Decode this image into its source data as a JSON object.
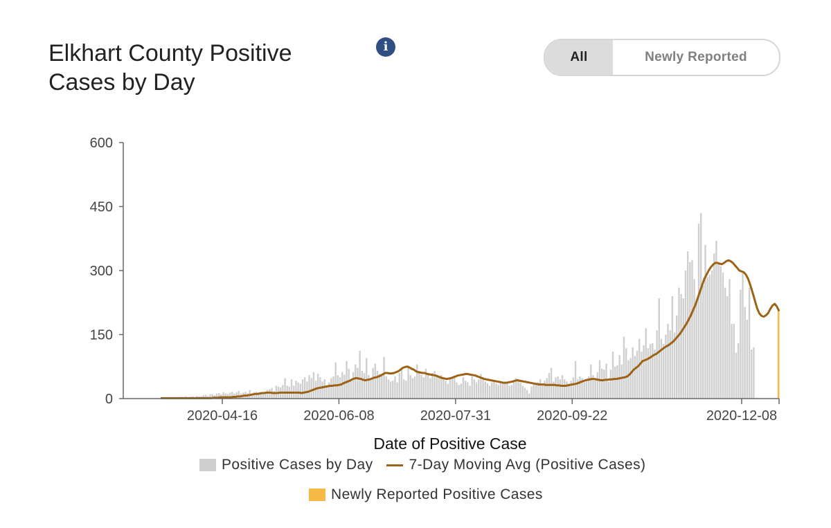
{
  "header": {
    "title": "Elkhart County Positive Cases by Day",
    "toggle_all": "All",
    "toggle_new": "Newly Reported"
  },
  "colors": {
    "bar": "#cfcfcf",
    "avg_line": "#9c6316",
    "newly_reported": "#f6b946",
    "info_icon": "#2f4f83"
  },
  "chart_data": {
    "type": "bar",
    "title": "Elkhart County Positive Cases by Day",
    "xlabel": "Date of Positive Case",
    "ylabel": "",
    "ylim": [
      0,
      600
    ],
    "yticks": [
      0,
      150,
      300,
      450,
      600
    ],
    "xticks": [
      "2020-04-16",
      "2020-06-08",
      "2020-07-31",
      "2020-09-22",
      "2020-12-08"
    ],
    "legend": {
      "placement": "bottom",
      "items": [
        "Positive Cases by Day",
        "7-Day Moving Avg (Positive Cases)",
        "Newly Reported Positive Cases"
      ]
    },
    "x_start": "2020-03-02",
    "x_end": "2020-12-25",
    "series": [
      {
        "name": "Positive Cases by Day",
        "type": "bar",
        "values": [
          1,
          0,
          0,
          1,
          0,
          0,
          1,
          0,
          1,
          0,
          1,
          0,
          0,
          1,
          0,
          1,
          1,
          0,
          2,
          1,
          1,
          2,
          1,
          3,
          2,
          3,
          4,
          2,
          5,
          3,
          4,
          5,
          3,
          6,
          5,
          6,
          8,
          9,
          6,
          10,
          11,
          8,
          12,
          13,
          10,
          15,
          12,
          11,
          14,
          16,
          12,
          15,
          18,
          12,
          14,
          16,
          13,
          20,
          11,
          15,
          16,
          14,
          12,
          13,
          15,
          20,
          22,
          25,
          18,
          30,
          28,
          26,
          32,
          48,
          30,
          28,
          45,
          30,
          42,
          38,
          35,
          45,
          50,
          40,
          55,
          48,
          62,
          42,
          58,
          50,
          40,
          45,
          30,
          38,
          48,
          52,
          85,
          55,
          50,
          62,
          56,
          88,
          70,
          45,
          62,
          80,
          72,
          112,
          65,
          60,
          95,
          55,
          48,
          72,
          82,
          65,
          58,
          55,
          98,
          52,
          45,
          40,
          42,
          52,
          38,
          60,
          72,
          45,
          42,
          78,
          55,
          48,
          52,
          80,
          65,
          55,
          50,
          70,
          58,
          48,
          60,
          65,
          52,
          48,
          55,
          45,
          42,
          35,
          48,
          52,
          50,
          38,
          32,
          35,
          50,
          42,
          38,
          30,
          52,
          45,
          38,
          45,
          58,
          50,
          40,
          36,
          30,
          38,
          42,
          35,
          32,
          36,
          38,
          40,
          35,
          30,
          32,
          42,
          48,
          45,
          38,
          30,
          25,
          20,
          12,
          28,
          35,
          32,
          38,
          45,
          35,
          42,
          48,
          60,
          72,
          40,
          50,
          52,
          45,
          55,
          45,
          40,
          35,
          42,
          50,
          88,
          45,
          52,
          48,
          40,
          45,
          52,
          80,
          55,
          48,
          62,
          90,
          70,
          68,
          82,
          40,
          68,
          110,
          75,
          78,
          102,
          80,
          145,
          118,
          90,
          95,
          120,
          100,
          112,
          140,
          110,
          125,
          165,
          118,
          128,
          130,
          115,
          160,
          235,
          140,
          128,
          150,
          175,
          160,
          240,
          155,
          195,
          260,
          245,
          235,
          300,
          345,
          320,
          325,
          280,
          230,
          410,
          435,
          265,
          360,
          285,
          290,
          300,
          340,
          370,
          320,
          310,
          295,
          260,
          240,
          280,
          175,
          175,
          108,
          130,
          255,
          295,
          215,
          185,
          260,
          115,
          120
        ]
      },
      {
        "name": "7-Day Moving Avg (Positive Cases)",
        "type": "line",
        "values": [
          1,
          1,
          1,
          1,
          1,
          1,
          1,
          1,
          1,
          1,
          1,
          1,
          1,
          1,
          1,
          1,
          1,
          1,
          1,
          1,
          1,
          1,
          1,
          1,
          2,
          2,
          2,
          3,
          3,
          3,
          3,
          3,
          3,
          4,
          4,
          5,
          5,
          6,
          7,
          7,
          8,
          9,
          10,
          11,
          11,
          12,
          13,
          13,
          14,
          14,
          14,
          13,
          13,
          13,
          14,
          14,
          14,
          14,
          14,
          14,
          14,
          14,
          14,
          14,
          13,
          14,
          15,
          16,
          18,
          20,
          22,
          24,
          25,
          26,
          27,
          28,
          29,
          30,
          30,
          31,
          31,
          32,
          33,
          36,
          38,
          40,
          42,
          45,
          47,
          48,
          47,
          46,
          44,
          43,
          44,
          45,
          47,
          49,
          50,
          52,
          54,
          57,
          60,
          60,
          59,
          59,
          60,
          62,
          64,
          68,
          72,
          74,
          75,
          73,
          70,
          68,
          64,
          62,
          61,
          60,
          60,
          58,
          57,
          56,
          55,
          54,
          52,
          50,
          48,
          47,
          46,
          47,
          48,
          50,
          52,
          54,
          55,
          56,
          57,
          58,
          57,
          56,
          55,
          54,
          52,
          50,
          48,
          46,
          45,
          44,
          43,
          42,
          41,
          40,
          39,
          38,
          37,
          37,
          38,
          39,
          40,
          42,
          43,
          42,
          41,
          40,
          39,
          38,
          37,
          36,
          35,
          34,
          33,
          33,
          33,
          32,
          32,
          32,
          32,
          32,
          31,
          31,
          30,
          30,
          30,
          31,
          32,
          33,
          34,
          35,
          37,
          39,
          41,
          43,
          44,
          45,
          46,
          46,
          45,
          44,
          43,
          43,
          44,
          44,
          45,
          45,
          46,
          46,
          47,
          48,
          49,
          50,
          52,
          56,
          62,
          68,
          72,
          76,
          82,
          88,
          90,
          92,
          95,
          98,
          102,
          104,
          108,
          112,
          116,
          120,
          123,
          126,
          130,
          134,
          140,
          146,
          152,
          160,
          168,
          176,
          186,
          196,
          208,
          220,
          235,
          250,
          265,
          280,
          290,
          300,
          308,
          314,
          318,
          318,
          316,
          315,
          318,
          322,
          324,
          322,
          318,
          312,
          306,
          300,
          298,
          296,
          290,
          280,
          265,
          248,
          230,
          212,
          200,
          194,
          192,
          195,
          200,
          210,
          218,
          222,
          216,
          205
        ]
      },
      {
        "name": "Newly Reported Positive Cases",
        "type": "bar",
        "values": [
          205
        ]
      }
    ]
  }
}
